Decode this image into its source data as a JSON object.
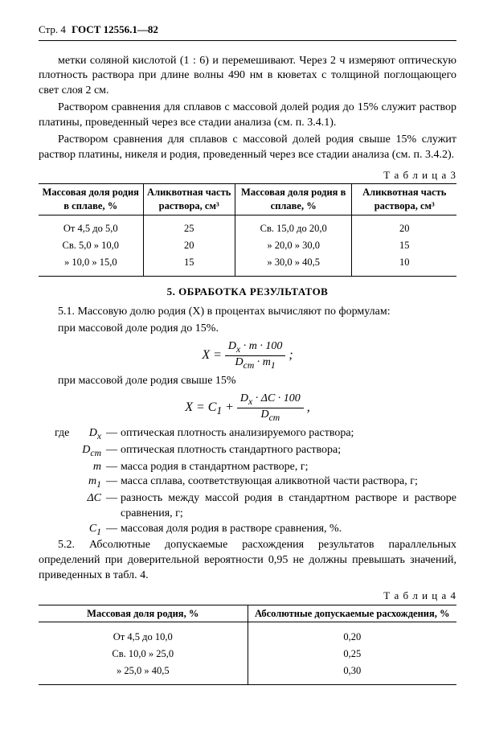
{
  "header": {
    "page_label": "Стр. 4",
    "doc_id": "ГОСТ 12556.1—82"
  },
  "intro": {
    "p1": "метки соляной кислотой (1 : 6) и перемешивают. Через 2 ч измеряют оптическую плотность раствора при длине волны 490 нм в кюветах с толщиной поглощающего свет слоя 2 см.",
    "p2": "Раствором сравнения для сплавов с массовой долей родия до 15% служит раствор платины, проведенный через все стадии анализа (см. п. 3.4.1).",
    "p3": "Раствором сравнения для сплавов с массовой долей родия свыше 15% служит раствор платины, никеля и родия, проведенный через все стадии анализа (см. п. 3.4.2)."
  },
  "table3": {
    "title": "Т а б л и ц а  3",
    "headers": {
      "c1": "Массовая доля родия в сплаве, %",
      "c2": "Аликвотная часть раствора, см³",
      "c3": "Массовая доля родия в сплаве, %",
      "c4": "Аликвотная часть раствора, см³"
    },
    "rows": [
      {
        "c1": "От  4,5 до  5,0",
        "c2": "25",
        "c3": "Св. 15,0 до 20,0",
        "c4": "20"
      },
      {
        "c1": "Св. 5,0  »  10,0",
        "c2": "20",
        "c3": "»  20,0  »  30,0",
        "c4": "15"
      },
      {
        "c1": "»  10,0  »  15,0",
        "c2": "15",
        "c3": "»  30,0  »  40,5",
        "c4": "10"
      }
    ]
  },
  "section5": {
    "title": "5. ОБРАБОТКА РЕЗУЛЬТАТОВ",
    "p1": "5.1. Массовую долю родия (X) в процентах вычисляют по формулам:",
    "p2": "при массовой доле родия до 15%.",
    "f1_num": "D<sub>x</sub> · m · 100",
    "f1_den": "D<sub>ст</sub> · m<sub>1</sub>",
    "p3": "при массовой доле родия свыше 15%",
    "f2_pre": "X = C<sub>1</sub> + ",
    "f2_num": "D<sub>x</sub> · ΔC · 100",
    "f2_den": "D<sub>ст</sub>",
    "where_label": "где",
    "defs": [
      {
        "sym": "D<sub>x</sub>",
        "def": "оптическая плотность анализируемого раствора;"
      },
      {
        "sym": "D<sub>ст</sub>",
        "def": "оптическая плотность стандартного раствора;"
      },
      {
        "sym": "m",
        "def": "масса родия в стандартном растворе, г;"
      },
      {
        "sym": "m<sub>1</sub>",
        "def": "масса сплава, соответствующая аликвотной части раствора, г;"
      },
      {
        "sym": "ΔC",
        "def": "разность между массой родия в стандартном растворе и растворе сравнения, г;"
      },
      {
        "sym": "C<sub>1</sub>",
        "def": "массовая доля родия в растворе сравнения, %."
      }
    ],
    "p4": "5.2. Абсолютные допускаемые расхождения результатов параллельных определений при доверительной вероятности 0,95 не должны превышать значений, приведенных в табл. 4."
  },
  "table4": {
    "title": "Т а б л и ц а  4",
    "headers": {
      "c1": "Массовая доля родия, %",
      "c2": "Абсолютные допускаемые расхождения, %"
    },
    "rows": [
      {
        "c1": "От  4,5 до 10,0",
        "c2": "0,20"
      },
      {
        "c1": "Св. 10,0  »  25,0",
        "c2": "0,25"
      },
      {
        "c1": "»  25,0  »  40,5",
        "c2": "0,30"
      }
    ]
  }
}
